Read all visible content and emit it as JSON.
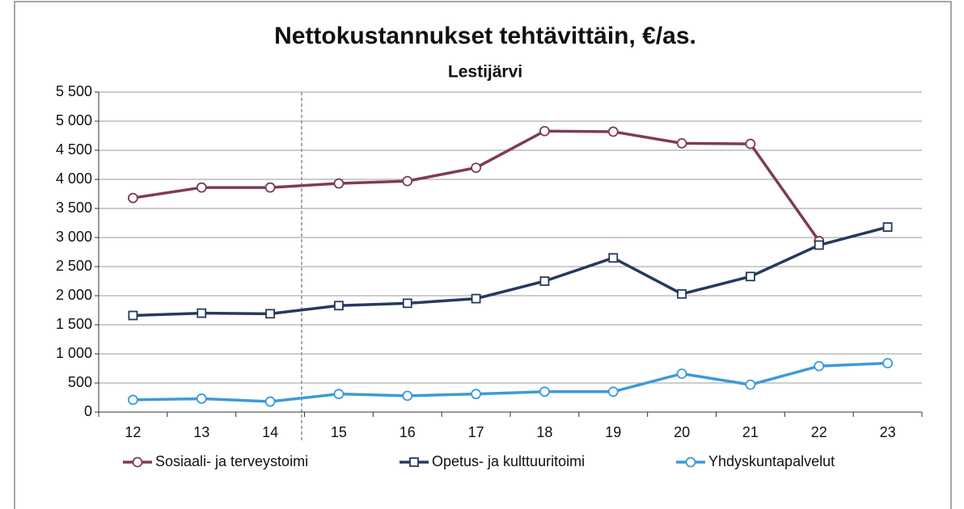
{
  "chart_data": {
    "type": "line",
    "title": "Nettokustannukset tehtävittäin, €/as.",
    "subtitle": "Lestijärvi",
    "categories": [
      "12",
      "13",
      "14",
      "15",
      "16",
      "17",
      "18",
      "19",
      "20",
      "21",
      "22",
      "23"
    ],
    "series": [
      {
        "name": "Sosiaali- ja terveystoimi",
        "color": "#7f3a5a",
        "marker": "circle",
        "values": [
          3680,
          3860,
          3860,
          3930,
          3970,
          4200,
          4830,
          4820,
          4620,
          4610,
          2940,
          null
        ]
      },
      {
        "name": "Opetus- ja kulttuuritoimi",
        "color": "#253a5e",
        "marker": "square",
        "values": [
          1660,
          1700,
          1690,
          1830,
          1870,
          1950,
          2250,
          2650,
          2030,
          2330,
          2870,
          3180
        ]
      },
      {
        "name": "Yhdyskuntapalvelut",
        "color": "#3d9ad8",
        "marker": "circle",
        "values": [
          210,
          230,
          180,
          310,
          280,
          310,
          350,
          350,
          660,
          470,
          790,
          840
        ]
      }
    ],
    "ylim": [
      0,
      5500
    ],
    "yticks": [
      0,
      500,
      {
        "value": 1000,
        "label": "1 000"
      },
      {
        "value": 1500,
        "label": "1 500"
      },
      {
        "value": 2000,
        "label": "2 000"
      },
      {
        "value": 2500,
        "label": "2 500"
      },
      {
        "value": 3000,
        "label": "3 000"
      },
      {
        "value": 3500,
        "label": "3 500"
      },
      {
        "value": 4000,
        "label": "4 000"
      },
      {
        "value": 4500,
        "label": "4 500"
      },
      {
        "value": 5000,
        "label": "5 000"
      },
      {
        "value": 5500,
        "label": "5 500"
      }
    ],
    "grid": true,
    "legend": "bottom"
  }
}
